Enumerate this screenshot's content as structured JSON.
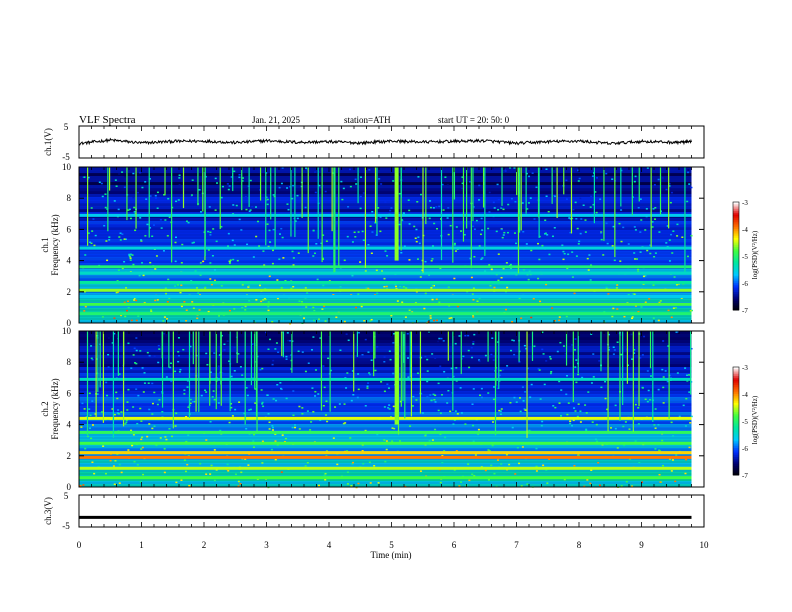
{
  "header": {
    "title": "VLF  Spectra",
    "date": "Jan. 21, 2025",
    "station": "station=ATH",
    "start": "start  UT  =    20: 50: 0"
  },
  "chart_data": [
    {
      "type": "line",
      "panel": "ch1-waveform",
      "ylabel": "ch.1(V)",
      "ylim": [
        -5,
        5
      ],
      "ytick_labels": [
        "5",
        "-5"
      ],
      "x": [
        0,
        0.5,
        1,
        1.5,
        2,
        2.5,
        3,
        3.5,
        4,
        4.5,
        5,
        5.5,
        6,
        6.5,
        7,
        7.5,
        8,
        8.5,
        9,
        9.5,
        9.8
      ],
      "values": [
        -0.5,
        0.6,
        -0.3,
        0.2,
        0.3,
        -0.2,
        0.4,
        -0.1,
        0.1,
        -0.3,
        0.3,
        0.0,
        0.2,
        0.4,
        -0.4,
        0.1,
        0.3,
        -0.5,
        0.2,
        -0.1,
        0.0
      ]
    },
    {
      "type": "heatmap",
      "panel": "ch1-spectrogram",
      "ylabel": "ch.1\nFrequency (kHz)",
      "ylim": [
        0,
        10
      ],
      "ytick_labels": [
        "0",
        "2",
        "4",
        "6",
        "8",
        "10"
      ],
      "colorbar": {
        "label": "log(PSD)(V²/Hz)",
        "range": [
          -7,
          -3
        ],
        "tick_labels": [
          "-3",
          "-4",
          "-5",
          "-6",
          "-7"
        ]
      },
      "bands_khz": [
        {
          "freq": 0.6,
          "level": -5.0
        },
        {
          "freq": 1.2,
          "level": -4.8
        },
        {
          "freq": 1.7,
          "level": -5.6
        },
        {
          "freq": 2.1,
          "level": -4.6
        },
        {
          "freq": 2.6,
          "level": -5.2
        },
        {
          "freq": 3.2,
          "level": -5.4
        },
        {
          "freq": 3.6,
          "level": -5.0
        },
        {
          "freq": 4.8,
          "level": -5.5
        },
        {
          "freq": 6.9,
          "level": -5.6
        }
      ]
    },
    {
      "type": "heatmap",
      "panel": "ch2-spectrogram",
      "ylabel": "ch.2\nFrequency (kHz)",
      "ylim": [
        0,
        10
      ],
      "ytick_labels": [
        "0",
        "2",
        "4",
        "6",
        "8",
        "10"
      ],
      "colorbar": {
        "label": "log(PSD)(V²/Hz)",
        "range": [
          -7,
          -3
        ],
        "tick_labels": [
          "-3",
          "-4",
          "-5",
          "-6",
          "-7"
        ]
      },
      "bands_khz": [
        {
          "freq": 0.6,
          "level": -4.8
        },
        {
          "freq": 1.2,
          "level": -4.5
        },
        {
          "freq": 1.9,
          "level": -3.9
        },
        {
          "freq": 2.2,
          "level": -4.2
        },
        {
          "freq": 2.8,
          "level": -4.8
        },
        {
          "freq": 3.5,
          "level": -4.9
        },
        {
          "freq": 4.4,
          "level": -4.4
        },
        {
          "freq": 6.9,
          "level": -5.4
        }
      ]
    },
    {
      "type": "line",
      "panel": "ch3-waveform",
      "ylabel": "ch.3(V)",
      "ylim": [
        -5,
        5
      ],
      "ytick_labels": [
        "5",
        "-5"
      ],
      "x": [
        0,
        9.8
      ],
      "values": [
        -2,
        -2
      ]
    }
  ],
  "x_axis": {
    "label": "Time  (min)",
    "range": [
      0,
      10
    ],
    "tick_labels": [
      "0",
      "1",
      "2",
      "3",
      "4",
      "5",
      "6",
      "7",
      "8",
      "9",
      "10"
    ]
  },
  "colors": {
    "waveform": "#000000",
    "colormap": [
      "#000000",
      "#000070",
      "#0030ff",
      "#00c8ff",
      "#00e8a0",
      "#40ff40",
      "#ffff00",
      "#ff7000",
      "#e00000",
      "#ffffff"
    ]
  }
}
